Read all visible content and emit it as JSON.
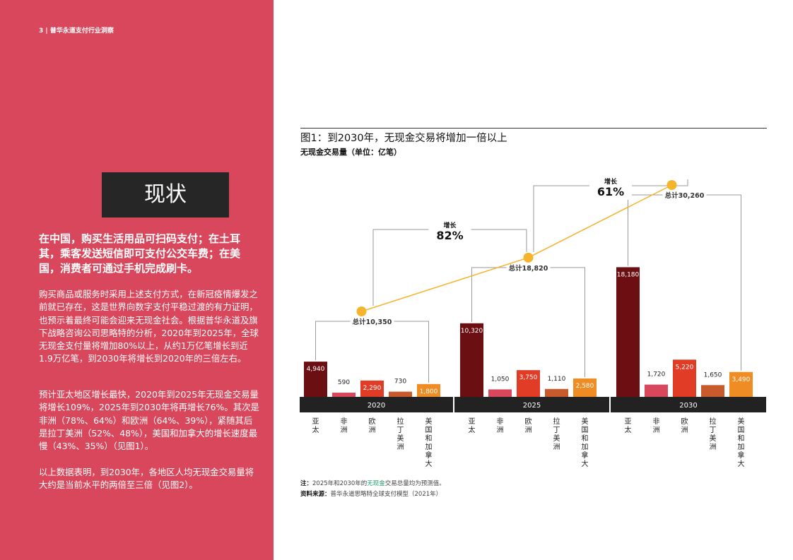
{
  "page": {
    "header": "3 | 普华永道支付行业洞察",
    "title": "现状",
    "lead": "在中国，购买生活用品可扫码支付；在土耳其，乘客发送短信即可支付公交车费；在美国，消费者可通过手机完成刷卡。",
    "paragraphs": [
      "购买商品或服务时采用上述支付方式，在新冠疫情爆发之前就已存在，这是世界向数字支付平稳过渡的有力证明，也预示着最终可能会迎来无现金社会。根据普华永道及旗下战略咨询公司思略特的分析，2020年到2025年，全球无现金支付量将增加80%以上，从约1万亿笔增长到近1.9万亿笔，到2030年将增长到2020年的三倍左右。",
      "预计亚太地区增长最快，2020年到2025年无现金交易量将增长109%，2025年到2030年将再增长76%。其次是非洲（78%、64%）和欧洲（64%、39%），紧随其后是拉丁美洲（52%、48%），美国和加拿大的增长速度最慢（43%、35%）（见图1）。",
      "以上数据表明，到2030年，各地区人均无现金交易量将大约是当前水平的两倍至三倍（见图2）。"
    ]
  },
  "figure": {
    "title": "图1：到2030年，无现金交易将增加一倍以上",
    "subtitle": "无现金交易量（单位：亿笔）",
    "note_prefix": "注：",
    "note_a": "2025年和2030年的",
    "note_highlight": "无现金",
    "note_b": "交易总量均为预测值。",
    "source_prefix": "资料来源：",
    "source_text": "普华永道思略特全球支付模型（2021年）"
  },
  "chart_data": {
    "type": "bar",
    "x": [
      "2020",
      "2025",
      "2030"
    ],
    "categories": [
      "亚太",
      "非洲",
      "欧洲",
      "拉丁美洲",
      "美国和加拿大"
    ],
    "category_labels": [
      "亚\n太",
      "非\n洲",
      "欧\n洲",
      "拉\n丁\n美\n洲",
      "美\n国\n和\n加\n拿\n大"
    ],
    "series": [
      {
        "x": "2020",
        "values": [
          4940,
          590,
          2290,
          730,
          1800
        ],
        "total": 10350,
        "total_label": "总计10,350"
      },
      {
        "x": "2025",
        "values": [
          10320,
          1050,
          3750,
          1110,
          2580
        ],
        "total": 18820,
        "total_label": "总计18,820"
      },
      {
        "x": "2030",
        "values": [
          18180,
          1720,
          5220,
          1650,
          3490
        ],
        "total": 30260,
        "total_label": "总计30,260"
      }
    ],
    "value_labels": [
      [
        "4,940",
        "590",
        "2,290",
        "730",
        "1,800"
      ],
      [
        "10,320",
        "1,050",
        "3,750",
        "1,110",
        "2,580"
      ],
      [
        "18,180",
        "1,720",
        "5,220",
        "1,650",
        "3,490"
      ]
    ],
    "growth": [
      {
        "from": "2020",
        "to": "2025",
        "label": "增长",
        "value": "82%"
      },
      {
        "from": "2025",
        "to": "2030",
        "label": "增长",
        "value": "61%"
      }
    ],
    "colors": [
      "#6b0f12",
      "#d9475c",
      "#e03c26",
      "#c85a2c",
      "#ef8c23"
    ],
    "line_color": "#f5b42e",
    "year_bar_color": "#222222",
    "ylim": [
      0,
      32000
    ]
  }
}
